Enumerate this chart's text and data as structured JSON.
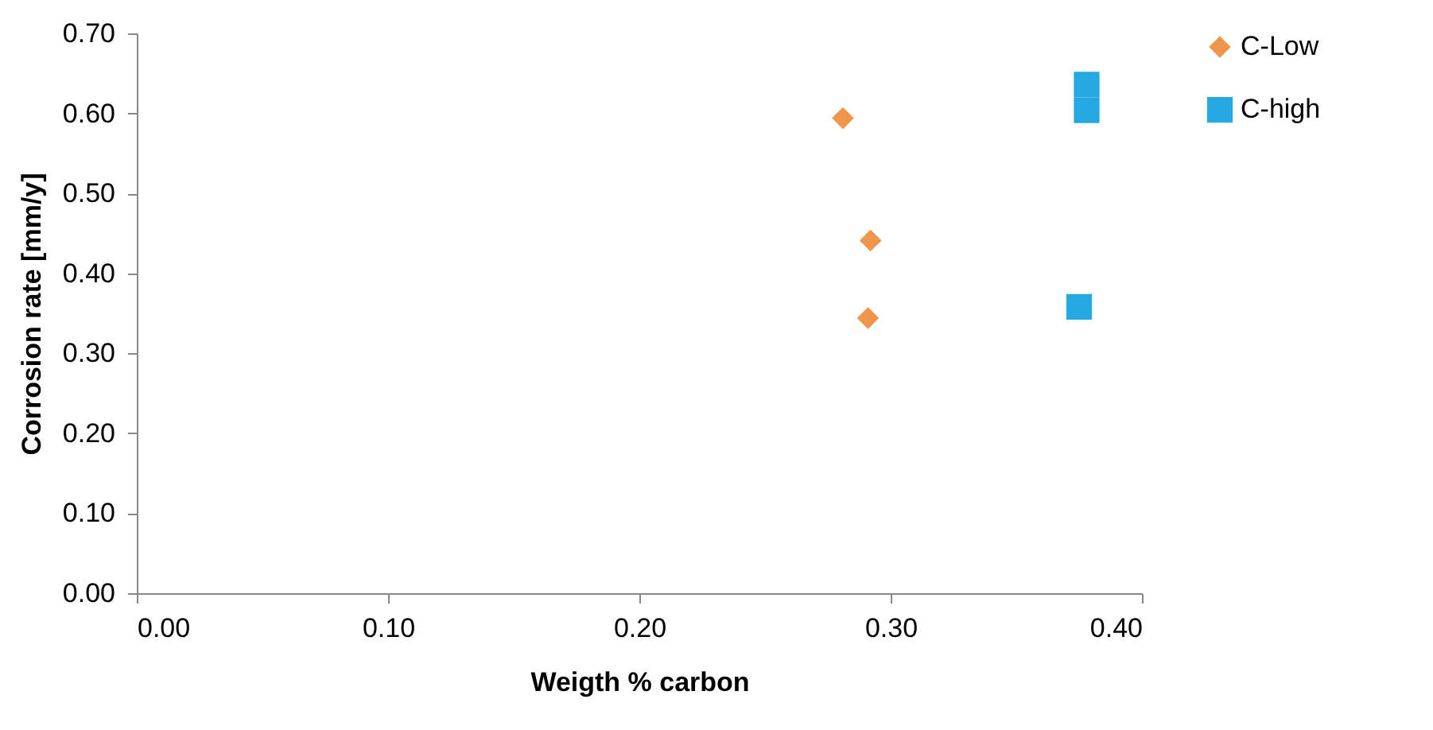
{
  "chart_data": {
    "type": "scatter",
    "xlabel": "Weigth % carbon",
    "ylabel": "Corrosion rate [mm/y]",
    "xlim": [
      0,
      0.4
    ],
    "xticks": [
      {
        "value": 0,
        "label": "0.00"
      },
      {
        "value": 0.1,
        "label": "0.10"
      },
      {
        "value": 0.2,
        "label": "0.20"
      },
      {
        "value": 0.3,
        "label": "0.30"
      },
      {
        "value": 0.4,
        "label": "0.40"
      }
    ],
    "ylim": [
      0,
      0.7
    ],
    "yticks": [
      {
        "value": 0,
        "label": "0.00"
      },
      {
        "value": 0.1,
        "label": "0.10"
      },
      {
        "value": 0.2,
        "label": "0.20"
      },
      {
        "value": 0.3,
        "label": "0.30"
      },
      {
        "value": 0.4,
        "label": "0.40"
      },
      {
        "value": 0.5,
        "label": "0.50"
      },
      {
        "value": 0.6,
        "label": "0.60"
      },
      {
        "value": 0.7,
        "label": "0.70"
      }
    ],
    "legend": "right",
    "grid": false,
    "series": [
      {
        "name": "C-Low",
        "color": "#f0964a",
        "marker": "diamond",
        "x": [
          0.281,
          0.292,
          0.291
        ],
        "values": [
          0.594,
          0.441,
          0.344
        ]
      },
      {
        "name": "C-high",
        "color": "#26a8e0",
        "marker": "square",
        "x": [
          0.378,
          0.378,
          0.375
        ],
        "values": [
          0.636,
          0.604,
          0.358
        ]
      }
    ]
  }
}
